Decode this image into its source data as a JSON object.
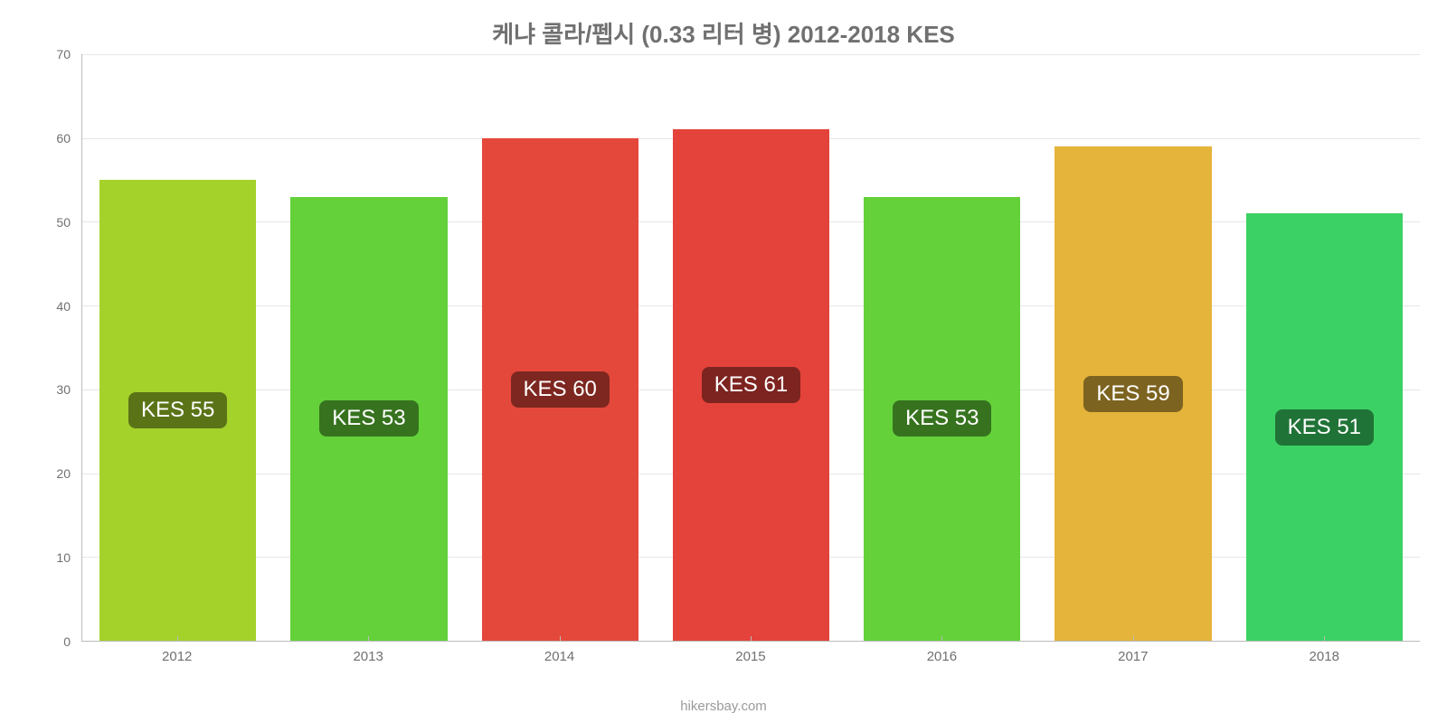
{
  "title": "케냐 콜라/펩시 (0.33 리터 병) 2012-2018 KES",
  "footer": "hikersbay.com",
  "chart": {
    "type": "bar",
    "background_color": "#ffffff",
    "grid_color": "#e6e6e6",
    "axis_color": "#bcbcbc",
    "tick_color": "#707070",
    "title_color": "#707070",
    "title_fontsize": 26,
    "tick_fontsize": 14,
    "value_label_fontsize": 24,
    "value_label_bg": "rgba(0,0,0,0.45)",
    "value_label_color": "#ffffff",
    "value_label_radius": 8,
    "ylim": [
      0,
      70
    ],
    "ytick_step": 10,
    "yticks": [
      "0",
      "10",
      "20",
      "30",
      "40",
      "50",
      "60",
      "70"
    ],
    "bar_width_pct": 82,
    "categories": [
      "2012",
      "2013",
      "2014",
      "2015",
      "2016",
      "2017",
      "2018"
    ],
    "values": [
      55,
      53,
      60,
      61,
      53,
      59,
      51
    ],
    "value_labels": [
      "KES 55",
      "KES 53",
      "KES 60",
      "KES 61",
      "KES 53",
      "KES 59",
      "KES 51"
    ],
    "bar_colors": [
      "#a4d12a",
      "#64d13a",
      "#e4483b",
      "#e4433b",
      "#64d13a",
      "#e4b43b",
      "#3bd164"
    ]
  }
}
